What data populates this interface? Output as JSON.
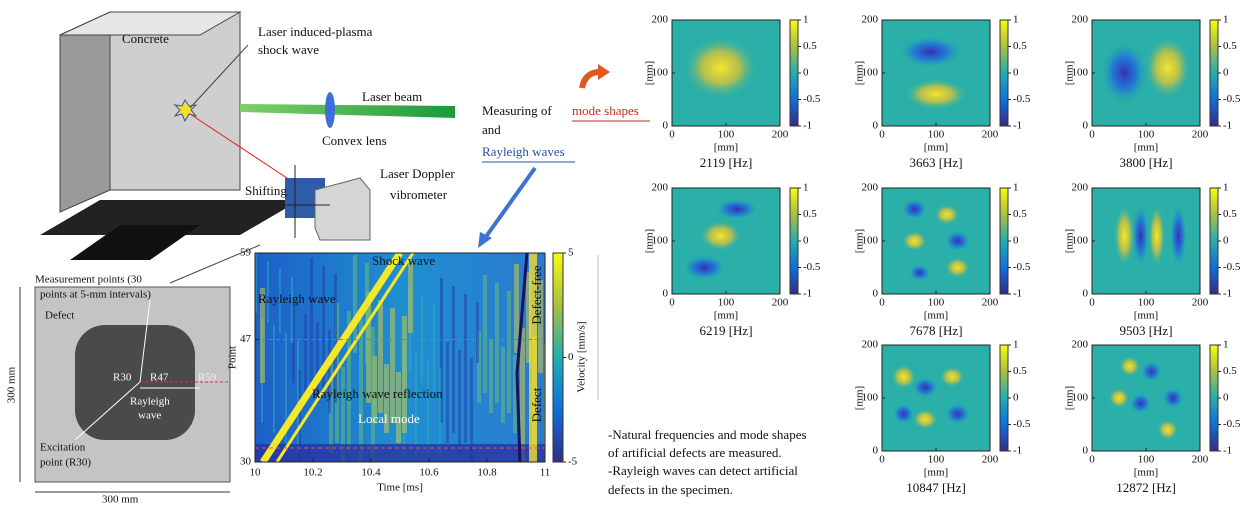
{
  "apparatus": {
    "concrete": "Concrete",
    "plasma": [
      "Laser induced-plasma",
      "shock wave"
    ],
    "laser_beam": "Laser beam",
    "lens": "Convex lens",
    "ldv": [
      "Laser Doppler",
      "vibrometer"
    ],
    "shifting": "Shifting",
    "measuring": {
      "prefix": "Measuring of",
      "mode_shapes": "mode shapes",
      "and": "and",
      "rayleigh": "Rayleigh waves"
    }
  },
  "specimen": {
    "points": [
      "Measurement points (30",
      "points at 5-mm intervals)"
    ],
    "defect": "Defect",
    "r30": "R30",
    "r47": "R47",
    "r59": "R59",
    "rayleigh": [
      "Rayleigh",
      "wave"
    ],
    "excitation": [
      "Excitation",
      "point (R30)"
    ],
    "width": "300 mm",
    "height": "300 mm"
  },
  "bscan": {
    "xlabel": "Time [ms]",
    "ylabel": "Point",
    "xticks": [
      10,
      10.2,
      10.4,
      10.6,
      10.8,
      11
    ],
    "xlim": [
      10,
      11
    ],
    "yticks": [
      30,
      47,
      59
    ],
    "ylim": [
      30,
      59
    ],
    "cbar_ticks": [
      5,
      0,
      -5
    ],
    "cbar_lim": [
      -5,
      5
    ],
    "cbar_label": "Velocity [mm/s]",
    "annotations": {
      "shock": "Shock wave",
      "rayleigh": "Rayleigh wave",
      "reflection": "Rayleigh wave reflection",
      "local": "Local mode",
      "defect_free": "Defect-free",
      "defect": "Defect"
    }
  },
  "mode_shapes": {
    "axis_label": "[mm]",
    "ticks": [
      0,
      100,
      200
    ],
    "lim": [
      0,
      200
    ],
    "cbar_ticks": [
      1,
      0.5,
      0,
      -0.5,
      -1
    ],
    "cbar_lim": [
      -1,
      1
    ],
    "panels": [
      {
        "title": "2119 [Hz]"
      },
      {
        "title": "3663 [Hz]"
      },
      {
        "title": "3800 [Hz]"
      },
      {
        "title": "6219 [Hz]"
      },
      {
        "title": "7678 [Hz]"
      },
      {
        "title": "9503 [Hz]"
      },
      {
        "title": "10847 [Hz]"
      },
      {
        "title": "12872 [Hz]"
      }
    ]
  },
  "notes": [
    "-Natural frequencies and mode shapes",
    "of artificial defects are measured.",
    "-Rayleigh waves can detect artificial",
    "defects in the specimen."
  ]
}
